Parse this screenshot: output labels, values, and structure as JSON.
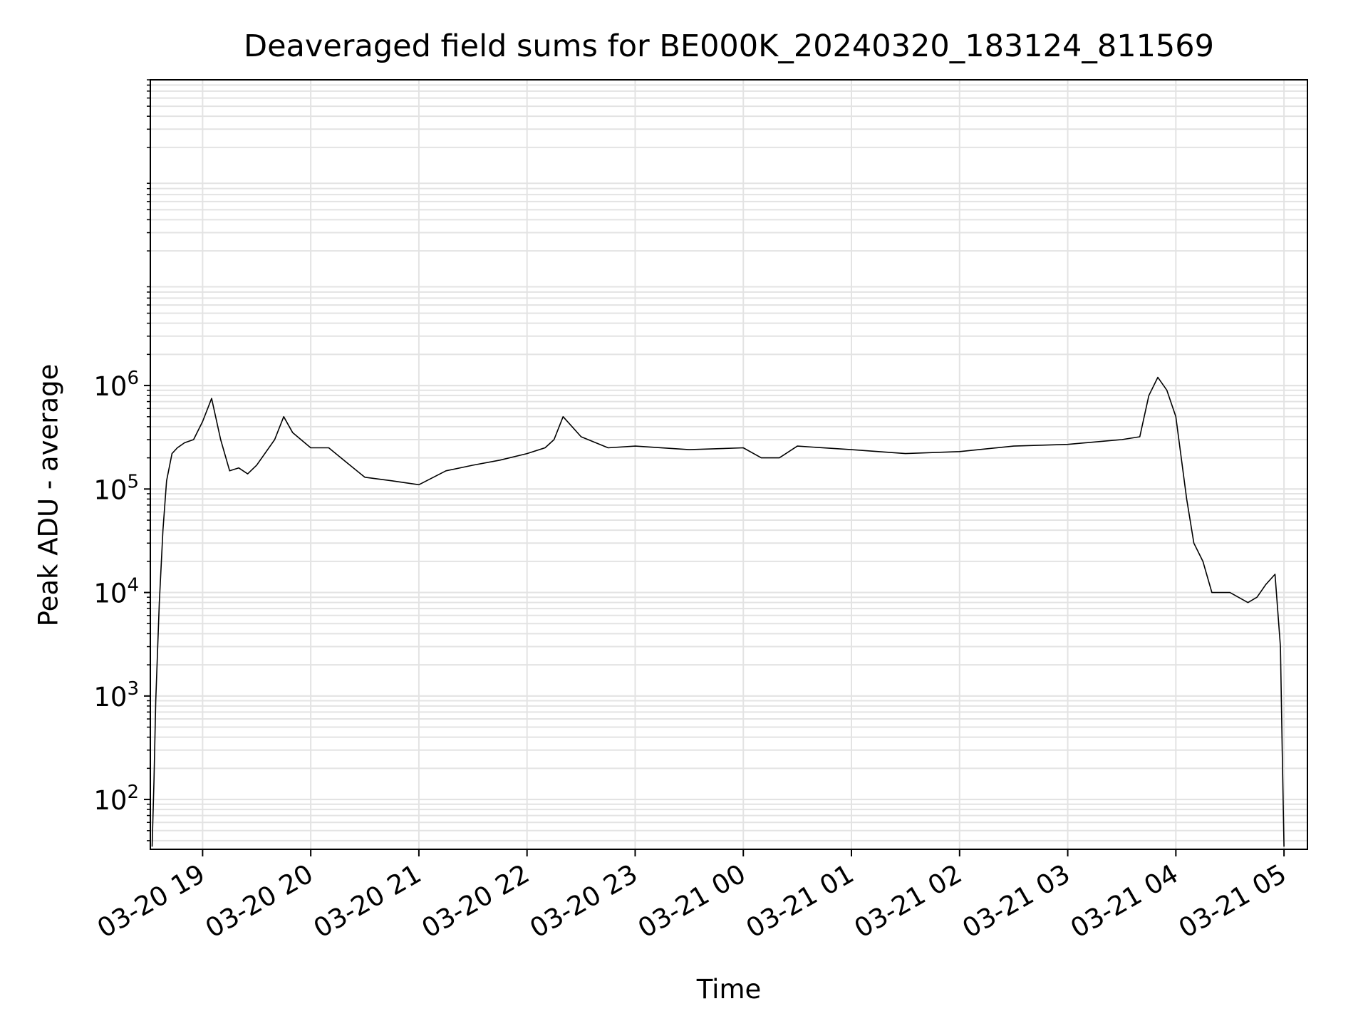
{
  "chart_data": {
    "type": "line",
    "title": "Deaveraged field sums for BE000K_20240320_183124_811569",
    "xlabel": "Time",
    "ylabel": "Peak ADU - average",
    "y_scale": "log",
    "ylim": [
      33,
      900000000
    ],
    "xlim": [
      "2024-03-20 18:31",
      "2024-03-21 05:13"
    ],
    "grid": true,
    "line_color": "#000000",
    "x_ticks": [
      "2024-03-20 19:00",
      "2024-03-20 20:00",
      "2024-03-20 21:00",
      "2024-03-20 22:00",
      "2024-03-20 23:00",
      "2024-03-21 00:00",
      "2024-03-21 01:00",
      "2024-03-21 02:00",
      "2024-03-21 03:00",
      "2024-03-21 04:00",
      "2024-03-21 05:00"
    ],
    "x_tick_labels": [
      "03-20 19",
      "03-20 20",
      "03-20 21",
      "03-20 22",
      "03-20 23",
      "03-21 00",
      "03-21 01",
      "03-21 02",
      "03-21 03",
      "03-21 04",
      "03-21 05"
    ],
    "y_ticks": [
      100,
      1000,
      10000,
      100000,
      1000000
    ],
    "y_tick_labels": [
      {
        "base": "10",
        "exp": "2"
      },
      {
        "base": "10",
        "exp": "3"
      },
      {
        "base": "10",
        "exp": "4"
      },
      {
        "base": "10",
        "exp": "5"
      },
      {
        "base": "10",
        "exp": "6"
      }
    ],
    "series": [
      {
        "x": [
          "2024-03-20 18:32",
          "2024-03-20 18:33",
          "2024-03-20 18:34",
          "2024-03-20 18:36",
          "2024-03-20 18:38",
          "2024-03-20 18:40",
          "2024-03-20 18:43",
          "2024-03-20 18:46",
          "2024-03-20 18:50",
          "2024-03-20 18:55",
          "2024-03-20 19:00",
          "2024-03-20 19:05",
          "2024-03-20 19:10",
          "2024-03-20 19:15",
          "2024-03-20 19:20",
          "2024-03-20 19:25",
          "2024-03-20 19:30",
          "2024-03-20 19:40",
          "2024-03-20 19:45",
          "2024-03-20 19:50",
          "2024-03-20 20:00",
          "2024-03-20 20:10",
          "2024-03-20 20:20",
          "2024-03-20 20:30",
          "2024-03-20 20:45",
          "2024-03-20 21:00",
          "2024-03-20 21:15",
          "2024-03-20 21:30",
          "2024-03-20 21:45",
          "2024-03-20 22:00",
          "2024-03-20 22:10",
          "2024-03-20 22:15",
          "2024-03-20 22:20",
          "2024-03-20 22:30",
          "2024-03-20 22:45",
          "2024-03-20 23:00",
          "2024-03-20 23:30",
          "2024-03-21 00:00",
          "2024-03-21 00:10",
          "2024-03-21 00:20",
          "2024-03-21 00:30",
          "2024-03-21 01:00",
          "2024-03-21 01:30",
          "2024-03-21 02:00",
          "2024-03-21 02:30",
          "2024-03-21 03:00",
          "2024-03-21 03:20",
          "2024-03-21 03:30",
          "2024-03-21 03:40",
          "2024-03-21 03:45",
          "2024-03-21 03:50",
          "2024-03-21 03:55",
          "2024-03-21 04:00",
          "2024-03-21 04:03",
          "2024-03-21 04:06",
          "2024-03-21 04:10",
          "2024-03-21 04:15",
          "2024-03-21 04:20",
          "2024-03-21 04:30",
          "2024-03-21 04:40",
          "2024-03-21 04:45",
          "2024-03-21 04:50",
          "2024-03-21 04:55",
          "2024-03-21 04:58",
          "2024-03-21 04:59",
          "2024-03-21 05:00"
        ],
        "y": [
          35,
          150,
          900,
          8000,
          40000,
          120000,
          220000,
          250000,
          280000,
          300000,
          450000,
          750000,
          300000,
          150000,
          160000,
          140000,
          170000,
          300000,
          500000,
          350000,
          250000,
          250000,
          180000,
          130000,
          120000,
          110000,
          150000,
          170000,
          190000,
          220000,
          250000,
          300000,
          500000,
          320000,
          250000,
          260000,
          240000,
          250000,
          200000,
          200000,
          260000,
          240000,
          220000,
          230000,
          260000,
          270000,
          290000,
          300000,
          320000,
          800000,
          1200000,
          900000,
          500000,
          200000,
          80000,
          30000,
          20000,
          10000,
          10000,
          8000,
          9000,
          12000,
          15000,
          3000,
          300,
          35
        ]
      }
    ]
  }
}
